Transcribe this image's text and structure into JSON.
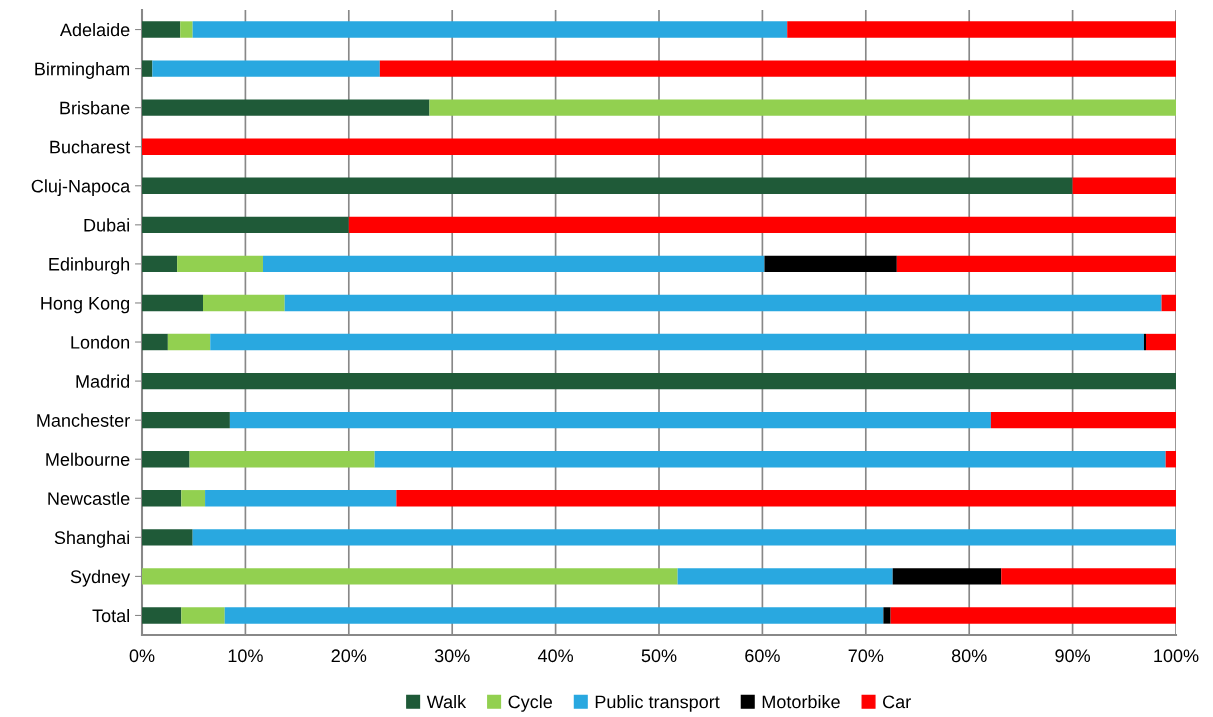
{
  "chart_data": {
    "type": "bar",
    "orientation": "horizontal",
    "stacked": true,
    "categories": [
      "Adelaide",
      "Birmingham",
      "Brisbane",
      "Bucharest",
      "Cluj-Napoca",
      "Dubai",
      "Edinburgh",
      "Hong Kong",
      "London",
      "Madrid",
      "Manchester",
      "Melbourne",
      "Newcastle",
      "Shanghai",
      "Sydney",
      "Total"
    ],
    "series": [
      {
        "name": "Walk",
        "color": "#1f5a38",
        "values": [
          3.7,
          1.0,
          27.8,
          0,
          90.0,
          20.0,
          3.4,
          5.9,
          2.5,
          100,
          8.5,
          4.6,
          3.8,
          4.9,
          0,
          3.8
        ]
      },
      {
        "name": "Cycle",
        "color": "#92d050",
        "values": [
          1.2,
          0,
          72.2,
          0,
          0,
          0,
          8.3,
          7.9,
          4.1,
          0,
          0,
          17.9,
          2.3,
          0,
          51.8,
          4.2
        ]
      },
      {
        "name": "Public transport",
        "color": "#29a8e0",
        "values": [
          57.5,
          22.0,
          0,
          0,
          0,
          0,
          48.5,
          84.8,
          90.3,
          0,
          73.6,
          76.5,
          18.5,
          95.1,
          20.8,
          63.7
        ]
      },
      {
        "name": "Motorbike",
        "color": "#000000",
        "values": [
          0,
          0,
          0,
          0,
          0,
          0,
          12.8,
          0,
          0.2,
          0,
          0,
          0,
          0,
          0,
          10.5,
          0.7
        ]
      },
      {
        "name": "Car",
        "color": "#ff0000",
        "values": [
          37.6,
          77.0,
          0,
          100,
          10.0,
          80.0,
          27.0,
          1.4,
          2.9,
          0,
          17.9,
          1.0,
          75.4,
          0,
          16.9,
          27.6
        ]
      }
    ],
    "xlim": [
      0,
      100
    ],
    "xticks": [
      {
        "value": 0,
        "label": "0%"
      },
      {
        "value": 10,
        "label": "10%"
      },
      {
        "value": 20,
        "label": "20%"
      },
      {
        "value": 30,
        "label": "30%"
      },
      {
        "value": 40,
        "label": "40%"
      },
      {
        "value": 50,
        "label": "50%"
      },
      {
        "value": 60,
        "label": "60%"
      },
      {
        "value": 70,
        "label": "70%"
      },
      {
        "value": 80,
        "label": "80%"
      },
      {
        "value": 90,
        "label": "90%"
      },
      {
        "value": 100,
        "label": "100%"
      }
    ],
    "grid": "x",
    "legend": "bottom"
  }
}
